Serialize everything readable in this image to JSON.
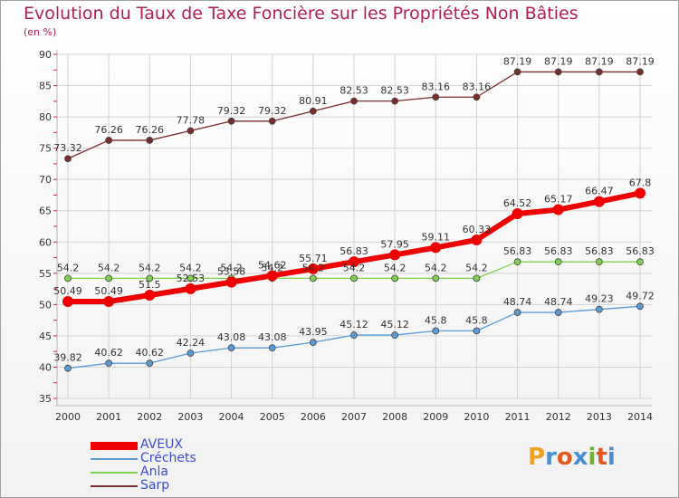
{
  "title": "Evolution du Taux de Taxe Foncière sur les Propriétés Non Bâties",
  "unit": "(en %)",
  "brand": "Proxiti",
  "chart_data": {
    "type": "line",
    "x": [
      "2000",
      "2001",
      "2002",
      "2003",
      "2004",
      "2005",
      "2006",
      "2007",
      "2008",
      "2009",
      "2010",
      "2011",
      "2012",
      "2013",
      "2014"
    ],
    "ylim": [
      35,
      90
    ],
    "yticks": [
      35,
      40,
      45,
      50,
      55,
      60,
      65,
      70,
      75,
      80,
      85,
      90
    ],
    "grid": true,
    "legend_position": "bottom-left",
    "series": [
      {
        "name": "AVEUX",
        "color": "#ee0000",
        "values": [
          50.49,
          50.49,
          51.5,
          52.53,
          53.58,
          54.62,
          55.71,
          56.83,
          57.95,
          59.11,
          60.33,
          64.52,
          65.17,
          66.47,
          67.8
        ],
        "labels": [
          "50.49",
          "50.49",
          "51.5",
          "52.53",
          "53.58",
          "54.62",
          "55.71",
          "56.83",
          "57.95",
          "59.11",
          "60.33",
          "64.52",
          "65.17",
          "66.47",
          "67.8"
        ]
      },
      {
        "name": "Créchets",
        "color": "#5b9bd5",
        "values": [
          39.82,
          40.62,
          40.62,
          42.24,
          43.08,
          43.08,
          43.95,
          45.12,
          45.12,
          45.8,
          45.8,
          48.74,
          48.74,
          49.23,
          49.72
        ],
        "labels": [
          "39.82",
          "40.62",
          "40.62",
          "42.24",
          "43.08",
          "43.08",
          "43.95",
          "45.12",
          "45.12",
          "45.8",
          "45.8",
          "48.74",
          "48.74",
          "49.23",
          "49.72"
        ]
      },
      {
        "name": "Anla",
        "color": "#80d050",
        "values": [
          54.2,
          54.2,
          54.2,
          54.2,
          54.2,
          54.2,
          54.2,
          54.2,
          54.2,
          54.2,
          54.2,
          56.83,
          56.83,
          56.83,
          56.83
        ],
        "labels": [
          "54.2",
          "54.2",
          "54.2",
          "54.2",
          "54.2",
          "54.2",
          "54.2",
          "54.2",
          "54.2",
          "54.2",
          "54.2",
          "56.83",
          "56.83",
          "56.83",
          "56.83"
        ]
      },
      {
        "name": "Sarp",
        "color": "#7b2c2c",
        "values": [
          73.32,
          76.26,
          76.26,
          77.78,
          79.32,
          79.32,
          80.91,
          82.53,
          82.53,
          83.16,
          83.16,
          87.19,
          87.19,
          87.19,
          87.19
        ],
        "labels": [
          "73.32",
          "76.26",
          "76.26",
          "77.78",
          "79.32",
          "79.32",
          "80.91",
          "82.53",
          "82.53",
          "83.16",
          "83.16",
          "87.19",
          "87.19",
          "87.19",
          "87.19"
        ]
      }
    ]
  }
}
